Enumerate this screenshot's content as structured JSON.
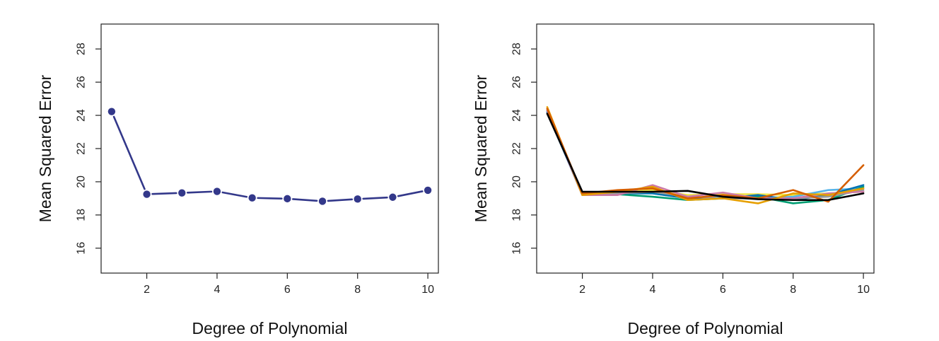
{
  "chart_data": [
    {
      "type": "line",
      "xlabel": "Degree of Polynomial",
      "ylabel": "Mean Squared Error",
      "xlim": [
        0.7,
        10.3
      ],
      "ylim": [
        14.5,
        29.5
      ],
      "x_ticks": [
        2,
        4,
        6,
        8,
        10
      ],
      "y_ticks": [
        16,
        18,
        20,
        22,
        24,
        26,
        28
      ],
      "grid": false,
      "legend": "none",
      "markers": true,
      "series": [
        {
          "color": "#33388a",
          "x": [
            1,
            2,
            3,
            4,
            5,
            6,
            7,
            8,
            9,
            10
          ],
          "values": [
            24.23,
            19.25,
            19.33,
            19.42,
            19.03,
            18.98,
            18.83,
            18.96,
            19.07,
            19.49
          ]
        }
      ]
    },
    {
      "type": "line",
      "xlabel": "Degree of Polynomial",
      "ylabel": "Mean Squared Error",
      "xlim": [
        0.7,
        10.3
      ],
      "ylim": [
        14.5,
        29.5
      ],
      "x_ticks": [
        2,
        4,
        6,
        8,
        10
      ],
      "y_ticks": [
        16,
        18,
        20,
        22,
        24,
        26,
        28
      ],
      "grid": false,
      "legend": "none",
      "markers": false,
      "series": [
        {
          "color": "#f0e442",
          "x": [
            1,
            2,
            3,
            4,
            5,
            6,
            7,
            8,
            9,
            10
          ],
          "values": [
            24.3,
            19.3,
            19.35,
            19.5,
            19.2,
            19.25,
            19.25,
            19.2,
            19.3,
            19.4
          ]
        },
        {
          "color": "#56b4e9",
          "x": [
            1,
            2,
            3,
            4,
            5,
            6,
            7,
            8,
            9,
            10
          ],
          "values": [
            24.2,
            19.2,
            19.3,
            19.3,
            19.0,
            19.1,
            19.0,
            19.1,
            19.5,
            19.6
          ]
        },
        {
          "color": "#009e73",
          "x": [
            1,
            2,
            3,
            4,
            5,
            6,
            7,
            8,
            9,
            10
          ],
          "values": [
            24.3,
            19.3,
            19.25,
            19.1,
            18.9,
            19.0,
            19.1,
            18.7,
            18.9,
            19.7
          ]
        },
        {
          "color": "#0072b2",
          "x": [
            1,
            2,
            3,
            4,
            5,
            6,
            7,
            8,
            9,
            10
          ],
          "values": [
            24.2,
            19.3,
            19.3,
            19.3,
            19.0,
            19.0,
            19.2,
            18.9,
            19.2,
            19.8
          ]
        },
        {
          "color": "#999999",
          "x": [
            1,
            2,
            3,
            4,
            5,
            6,
            7,
            8,
            9,
            10
          ],
          "values": [
            24.4,
            19.3,
            19.3,
            19.4,
            19.1,
            19.0,
            19.0,
            19.0,
            19.1,
            19.5
          ]
        },
        {
          "color": "#cc79a7",
          "x": [
            1,
            2,
            3,
            4,
            5,
            6,
            7,
            8,
            9,
            10
          ],
          "values": [
            24.3,
            19.2,
            19.2,
            19.8,
            19.1,
            19.35,
            19.0,
            19.0,
            19.3,
            19.4
          ]
        },
        {
          "color": "#e69f00",
          "x": [
            1,
            2,
            3,
            4,
            5,
            6,
            7,
            8,
            9,
            10
          ],
          "values": [
            24.5,
            19.2,
            19.4,
            19.7,
            18.9,
            19.0,
            18.7,
            19.3,
            19.2,
            19.6
          ]
        },
        {
          "color": "#d55e00",
          "x": [
            1,
            2,
            3,
            4,
            5,
            6,
            7,
            8,
            9,
            10
          ],
          "values": [
            24.4,
            19.3,
            19.5,
            19.6,
            19.0,
            19.2,
            19.0,
            19.5,
            18.8,
            21.0
          ]
        },
        {
          "color": "#000000",
          "x": [
            1,
            2,
            3,
            4,
            5,
            6,
            7,
            8,
            9,
            10
          ],
          "values": [
            24.1,
            19.4,
            19.4,
            19.4,
            19.45,
            19.1,
            18.95,
            18.9,
            18.9,
            19.3
          ]
        }
      ]
    }
  ]
}
